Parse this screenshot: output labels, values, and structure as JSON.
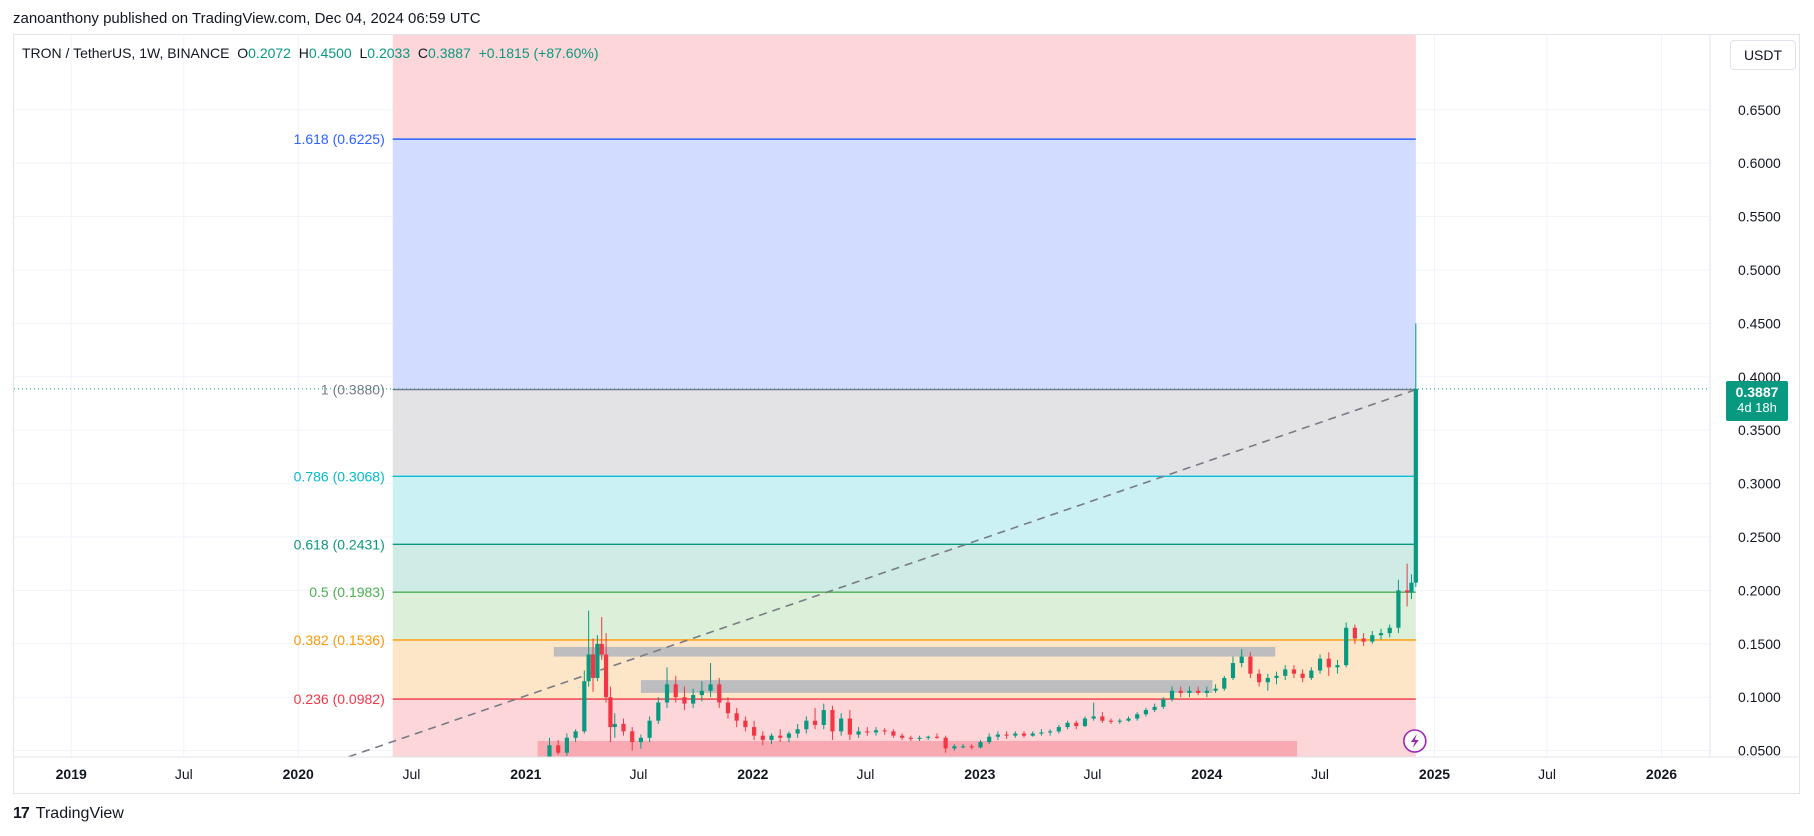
{
  "header": {
    "publisher_text": "zanoanthony published on TradingView.com, Dec 04, 2024 06:59 UTC"
  },
  "legend": {
    "symbol": "TRON / TetherUS, 1W, BINANCE",
    "open_label": "O",
    "open": "0.2072",
    "high_label": "H",
    "high": "0.4500",
    "low_label": "L",
    "low": "0.2033",
    "close_label": "C",
    "close": "0.3887",
    "change": "+0.1815 (+87.60%)"
  },
  "currency_button": {
    "label": "USDT"
  },
  "last_price": {
    "value": "0.3887",
    "countdown": "4d 18h"
  },
  "footer": {
    "brand": "TradingView",
    "logo_glyph": "17"
  },
  "colors": {
    "up": "#089981",
    "down": "#f23645",
    "grid": "#f0f3fa",
    "axis_text": "#131722"
  },
  "chart_data": {
    "type": "candlestick",
    "x_ticks": [
      {
        "label": "2019",
        "date": "2019-01-01",
        "bold": true
      },
      {
        "label": "Jul",
        "date": "2019-07-01",
        "bold": false
      },
      {
        "label": "2020",
        "date": "2020-01-01",
        "bold": true
      },
      {
        "label": "Jul",
        "date": "2020-07-01",
        "bold": false
      },
      {
        "label": "2021",
        "date": "2021-01-01",
        "bold": true
      },
      {
        "label": "Jul",
        "date": "2021-07-01",
        "bold": false
      },
      {
        "label": "2022",
        "date": "2022-01-01",
        "bold": true
      },
      {
        "label": "Jul",
        "date": "2022-07-01",
        "bold": false
      },
      {
        "label": "2023",
        "date": "2023-01-01",
        "bold": true
      },
      {
        "label": "Jul",
        "date": "2023-07-01",
        "bold": false
      },
      {
        "label": "2024",
        "date": "2024-01-01",
        "bold": true
      },
      {
        "label": "Jul",
        "date": "2024-07-01",
        "bold": false
      },
      {
        "label": "2025",
        "date": "2025-01-01",
        "bold": true
      },
      {
        "label": "Jul",
        "date": "2025-07-01",
        "bold": false
      },
      {
        "label": "2026",
        "date": "2026-01-01",
        "bold": true
      }
    ],
    "xlim": [
      "2018-10-01",
      "2026-03-20"
    ],
    "y_ticks": [
      "0.0500",
      "0.1000",
      "0.1500",
      "0.2000",
      "0.2500",
      "0.3000",
      "0.3500",
      "0.4000",
      "0.4500",
      "0.5000",
      "0.5500",
      "0.6000",
      "0.6500"
    ],
    "ylim": [
      0.044,
      0.72
    ],
    "fib_retracement": {
      "start_date": "2020-06-01",
      "end_date": "2024-12-02",
      "levels": [
        {
          "label": "1.618 (0.6225)",
          "ratio": 1.618,
          "price": 0.6225,
          "color": "#2962ff",
          "fill": "#d1dcff"
        },
        {
          "label": "1 (0.3880)",
          "ratio": 1,
          "price": 0.388,
          "color": "#787b86",
          "fill": "#e3e3e6"
        },
        {
          "label": "0.786 (0.3068)",
          "ratio": 0.786,
          "price": 0.3068,
          "color": "#00bcd4",
          "fill": "#cbf1f5"
        },
        {
          "label": "0.618 (0.2431)",
          "ratio": 0.618,
          "price": 0.2431,
          "color": "#089981",
          "fill": "#cfebe5"
        },
        {
          "label": "0.5 (0.1983)",
          "ratio": 0.5,
          "price": 0.1983,
          "color": "#4caf50",
          "fill": "#dcefd9"
        },
        {
          "label": "0.382 (0.1536)",
          "ratio": 0.382,
          "price": 0.1536,
          "color": "#ff9800",
          "fill": "#fde6c7"
        },
        {
          "label": "0.236 (0.0982)",
          "ratio": 0.236,
          "price": 0.0982,
          "color": "#f23645",
          "fill": "#fcd6d9"
        }
      ],
      "top_fill": "#fcd6d9",
      "bottom_fill": "#fcd6d9"
    },
    "zones": [
      {
        "start": "2021-02-15",
        "end": "2024-04-20",
        "low": 0.138,
        "high": 0.147,
        "color": "#b2b5be"
      },
      {
        "start": "2021-07-05",
        "end": "2024-01-10",
        "low": 0.104,
        "high": 0.116,
        "color": "#b2b5be"
      },
      {
        "start": "2021-01-20",
        "end": "2024-05-25",
        "low": 0.044,
        "high": 0.059,
        "color": "#f7a1a9"
      }
    ],
    "trendline": {
      "start_date": "2020-03-01",
      "start_price": 0.04,
      "end_date": "2024-12-02",
      "end_price": 0.388
    },
    "candles": [
      {
        "date": "2021-01-25",
        "o": 0.03,
        "h": 0.042,
        "l": 0.028,
        "c": 0.038
      },
      {
        "date": "2021-02-08",
        "o": 0.038,
        "h": 0.062,
        "l": 0.036,
        "c": 0.055
      },
      {
        "date": "2021-02-22",
        "o": 0.055,
        "h": 0.06,
        "l": 0.046,
        "c": 0.048
      },
      {
        "date": "2021-03-08",
        "o": 0.048,
        "h": 0.066,
        "l": 0.045,
        "c": 0.062
      },
      {
        "date": "2021-03-22",
        "o": 0.062,
        "h": 0.07,
        "l": 0.058,
        "c": 0.068
      },
      {
        "date": "2021-04-05",
        "o": 0.068,
        "h": 0.125,
        "l": 0.066,
        "c": 0.115
      },
      {
        "date": "2021-04-12",
        "o": 0.115,
        "h": 0.181,
        "l": 0.11,
        "c": 0.14
      },
      {
        "date": "2021-04-19",
        "o": 0.14,
        "h": 0.155,
        "l": 0.105,
        "c": 0.118
      },
      {
        "date": "2021-04-26",
        "o": 0.118,
        "h": 0.158,
        "l": 0.115,
        "c": 0.15
      },
      {
        "date": "2021-05-03",
        "o": 0.15,
        "h": 0.175,
        "l": 0.135,
        "c": 0.14
      },
      {
        "date": "2021-05-10",
        "o": 0.14,
        "h": 0.16,
        "l": 0.095,
        "c": 0.1
      },
      {
        "date": "2021-05-17",
        "o": 0.1,
        "h": 0.11,
        "l": 0.058,
        "c": 0.072
      },
      {
        "date": "2021-05-24",
        "o": 0.072,
        "h": 0.085,
        "l": 0.062,
        "c": 0.075
      },
      {
        "date": "2021-06-07",
        "o": 0.075,
        "h": 0.08,
        "l": 0.064,
        "c": 0.068
      },
      {
        "date": "2021-06-21",
        "o": 0.068,
        "h": 0.072,
        "l": 0.05,
        "c": 0.058
      },
      {
        "date": "2021-07-05",
        "o": 0.058,
        "h": 0.065,
        "l": 0.052,
        "c": 0.062
      },
      {
        "date": "2021-07-19",
        "o": 0.062,
        "h": 0.082,
        "l": 0.058,
        "c": 0.078
      },
      {
        "date": "2021-08-02",
        "o": 0.078,
        "h": 0.1,
        "l": 0.075,
        "c": 0.095
      },
      {
        "date": "2021-08-16",
        "o": 0.095,
        "h": 0.128,
        "l": 0.09,
        "c": 0.112
      },
      {
        "date": "2021-08-30",
        "o": 0.112,
        "h": 0.12,
        "l": 0.095,
        "c": 0.1
      },
      {
        "date": "2021-09-13",
        "o": 0.1,
        "h": 0.11,
        "l": 0.088,
        "c": 0.094
      },
      {
        "date": "2021-09-27",
        "o": 0.094,
        "h": 0.108,
        "l": 0.09,
        "c": 0.102
      },
      {
        "date": "2021-10-11",
        "o": 0.102,
        "h": 0.115,
        "l": 0.096,
        "c": 0.106
      },
      {
        "date": "2021-10-25",
        "o": 0.106,
        "h": 0.132,
        "l": 0.1,
        "c": 0.112
      },
      {
        "date": "2021-11-08",
        "o": 0.112,
        "h": 0.118,
        "l": 0.09,
        "c": 0.095
      },
      {
        "date": "2021-11-22",
        "o": 0.095,
        "h": 0.1,
        "l": 0.08,
        "c": 0.085
      },
      {
        "date": "2021-12-06",
        "o": 0.085,
        "h": 0.09,
        "l": 0.072,
        "c": 0.078
      },
      {
        "date": "2021-12-20",
        "o": 0.078,
        "h": 0.082,
        "l": 0.068,
        "c": 0.072
      },
      {
        "date": "2022-01-03",
        "o": 0.072,
        "h": 0.078,
        "l": 0.06,
        "c": 0.064
      },
      {
        "date": "2022-01-17",
        "o": 0.064,
        "h": 0.068,
        "l": 0.055,
        "c": 0.06
      },
      {
        "date": "2022-01-31",
        "o": 0.06,
        "h": 0.066,
        "l": 0.056,
        "c": 0.064
      },
      {
        "date": "2022-02-14",
        "o": 0.064,
        "h": 0.07,
        "l": 0.058,
        "c": 0.062
      },
      {
        "date": "2022-02-28",
        "o": 0.062,
        "h": 0.068,
        "l": 0.058,
        "c": 0.066
      },
      {
        "date": "2022-03-14",
        "o": 0.066,
        "h": 0.075,
        "l": 0.062,
        "c": 0.07
      },
      {
        "date": "2022-03-28",
        "o": 0.07,
        "h": 0.082,
        "l": 0.066,
        "c": 0.078
      },
      {
        "date": "2022-04-11",
        "o": 0.078,
        "h": 0.09,
        "l": 0.07,
        "c": 0.074
      },
      {
        "date": "2022-04-25",
        "o": 0.074,
        "h": 0.094,
        "l": 0.07,
        "c": 0.088
      },
      {
        "date": "2022-05-09",
        "o": 0.088,
        "h": 0.092,
        "l": 0.06,
        "c": 0.068
      },
      {
        "date": "2022-05-23",
        "o": 0.068,
        "h": 0.085,
        "l": 0.064,
        "c": 0.08
      },
      {
        "date": "2022-06-06",
        "o": 0.08,
        "h": 0.088,
        "l": 0.06,
        "c": 0.065
      },
      {
        "date": "2022-06-20",
        "o": 0.065,
        "h": 0.072,
        "l": 0.062,
        "c": 0.068
      },
      {
        "date": "2022-07-04",
        "o": 0.068,
        "h": 0.072,
        "l": 0.064,
        "c": 0.067
      },
      {
        "date": "2022-07-18",
        "o": 0.067,
        "h": 0.072,
        "l": 0.064,
        "c": 0.069
      },
      {
        "date": "2022-08-01",
        "o": 0.069,
        "h": 0.071,
        "l": 0.065,
        "c": 0.068
      },
      {
        "date": "2022-08-15",
        "o": 0.068,
        "h": 0.07,
        "l": 0.062,
        "c": 0.064
      },
      {
        "date": "2022-08-29",
        "o": 0.064,
        "h": 0.066,
        "l": 0.06,
        "c": 0.062
      },
      {
        "date": "2022-09-12",
        "o": 0.062,
        "h": 0.064,
        "l": 0.059,
        "c": 0.061
      },
      {
        "date": "2022-09-26",
        "o": 0.061,
        "h": 0.064,
        "l": 0.059,
        "c": 0.062
      },
      {
        "date": "2022-10-10",
        "o": 0.062,
        "h": 0.064,
        "l": 0.06,
        "c": 0.063
      },
      {
        "date": "2022-10-24",
        "o": 0.063,
        "h": 0.066,
        "l": 0.061,
        "c": 0.062
      },
      {
        "date": "2022-11-07",
        "o": 0.062,
        "h": 0.064,
        "l": 0.048,
        "c": 0.052
      },
      {
        "date": "2022-11-21",
        "o": 0.052,
        "h": 0.056,
        "l": 0.05,
        "c": 0.054
      },
      {
        "date": "2022-12-05",
        "o": 0.054,
        "h": 0.056,
        "l": 0.052,
        "c": 0.054
      },
      {
        "date": "2022-12-19",
        "o": 0.054,
        "h": 0.056,
        "l": 0.051,
        "c": 0.053
      },
      {
        "date": "2023-01-02",
        "o": 0.053,
        "h": 0.06,
        "l": 0.052,
        "c": 0.058
      },
      {
        "date": "2023-01-16",
        "o": 0.058,
        "h": 0.066,
        "l": 0.056,
        "c": 0.063
      },
      {
        "date": "2023-01-30",
        "o": 0.063,
        "h": 0.068,
        "l": 0.06,
        "c": 0.065
      },
      {
        "date": "2023-02-13",
        "o": 0.065,
        "h": 0.068,
        "l": 0.061,
        "c": 0.064
      },
      {
        "date": "2023-02-27",
        "o": 0.064,
        "h": 0.068,
        "l": 0.062,
        "c": 0.066
      },
      {
        "date": "2023-03-13",
        "o": 0.066,
        "h": 0.068,
        "l": 0.062,
        "c": 0.064
      },
      {
        "date": "2023-03-27",
        "o": 0.064,
        "h": 0.068,
        "l": 0.063,
        "c": 0.066
      },
      {
        "date": "2023-04-10",
        "o": 0.066,
        "h": 0.07,
        "l": 0.064,
        "c": 0.067
      },
      {
        "date": "2023-04-24",
        "o": 0.067,
        "h": 0.07,
        "l": 0.064,
        "c": 0.068
      },
      {
        "date": "2023-05-08",
        "o": 0.068,
        "h": 0.074,
        "l": 0.066,
        "c": 0.072
      },
      {
        "date": "2023-05-22",
        "o": 0.072,
        "h": 0.078,
        "l": 0.07,
        "c": 0.076
      },
      {
        "date": "2023-06-05",
        "o": 0.076,
        "h": 0.078,
        "l": 0.07,
        "c": 0.073
      },
      {
        "date": "2023-06-19",
        "o": 0.073,
        "h": 0.082,
        "l": 0.072,
        "c": 0.08
      },
      {
        "date": "2023-07-03",
        "o": 0.08,
        "h": 0.095,
        "l": 0.078,
        "c": 0.082
      },
      {
        "date": "2023-07-17",
        "o": 0.082,
        "h": 0.086,
        "l": 0.076,
        "c": 0.078
      },
      {
        "date": "2023-07-31",
        "o": 0.078,
        "h": 0.08,
        "l": 0.075,
        "c": 0.077
      },
      {
        "date": "2023-08-14",
        "o": 0.077,
        "h": 0.08,
        "l": 0.075,
        "c": 0.078
      },
      {
        "date": "2023-08-28",
        "o": 0.078,
        "h": 0.082,
        "l": 0.077,
        "c": 0.08
      },
      {
        "date": "2023-09-11",
        "o": 0.08,
        "h": 0.086,
        "l": 0.078,
        "c": 0.084
      },
      {
        "date": "2023-09-25",
        "o": 0.084,
        "h": 0.09,
        "l": 0.082,
        "c": 0.088
      },
      {
        "date": "2023-10-09",
        "o": 0.088,
        "h": 0.094,
        "l": 0.086,
        "c": 0.091
      },
      {
        "date": "2023-10-23",
        "o": 0.091,
        "h": 0.1,
        "l": 0.089,
        "c": 0.098
      },
      {
        "date": "2023-11-06",
        "o": 0.098,
        "h": 0.11,
        "l": 0.096,
        "c": 0.106
      },
      {
        "date": "2023-11-20",
        "o": 0.106,
        "h": 0.11,
        "l": 0.1,
        "c": 0.104
      },
      {
        "date": "2023-12-04",
        "o": 0.104,
        "h": 0.11,
        "l": 0.1,
        "c": 0.106
      },
      {
        "date": "2023-12-18",
        "o": 0.106,
        "h": 0.11,
        "l": 0.102,
        "c": 0.104
      },
      {
        "date": "2024-01-01",
        "o": 0.104,
        "h": 0.11,
        "l": 0.1,
        "c": 0.106
      },
      {
        "date": "2024-01-15",
        "o": 0.106,
        "h": 0.112,
        "l": 0.104,
        "c": 0.108
      },
      {
        "date": "2024-01-29",
        "o": 0.108,
        "h": 0.12,
        "l": 0.106,
        "c": 0.118
      },
      {
        "date": "2024-02-12",
        "o": 0.118,
        "h": 0.138,
        "l": 0.116,
        "c": 0.132
      },
      {
        "date": "2024-02-26",
        "o": 0.132,
        "h": 0.145,
        "l": 0.128,
        "c": 0.138
      },
      {
        "date": "2024-03-11",
        "o": 0.138,
        "h": 0.142,
        "l": 0.118,
        "c": 0.122
      },
      {
        "date": "2024-03-25",
        "o": 0.122,
        "h": 0.126,
        "l": 0.11,
        "c": 0.114
      },
      {
        "date": "2024-04-08",
        "o": 0.114,
        "h": 0.122,
        "l": 0.106,
        "c": 0.118
      },
      {
        "date": "2024-04-22",
        "o": 0.118,
        "h": 0.124,
        "l": 0.112,
        "c": 0.12
      },
      {
        "date": "2024-05-06",
        "o": 0.12,
        "h": 0.13,
        "l": 0.116,
        "c": 0.126
      },
      {
        "date": "2024-05-20",
        "o": 0.126,
        "h": 0.13,
        "l": 0.118,
        "c": 0.122
      },
      {
        "date": "2024-06-03",
        "o": 0.122,
        "h": 0.126,
        "l": 0.114,
        "c": 0.118
      },
      {
        "date": "2024-06-17",
        "o": 0.118,
        "h": 0.128,
        "l": 0.116,
        "c": 0.125
      },
      {
        "date": "2024-07-01",
        "o": 0.125,
        "h": 0.14,
        "l": 0.122,
        "c": 0.136
      },
      {
        "date": "2024-07-15",
        "o": 0.136,
        "h": 0.142,
        "l": 0.12,
        "c": 0.128
      },
      {
        "date": "2024-07-29",
        "o": 0.128,
        "h": 0.135,
        "l": 0.122,
        "c": 0.13
      },
      {
        "date": "2024-08-12",
        "o": 0.13,
        "h": 0.17,
        "l": 0.128,
        "c": 0.165
      },
      {
        "date": "2024-08-26",
        "o": 0.165,
        "h": 0.168,
        "l": 0.15,
        "c": 0.155
      },
      {
        "date": "2024-09-09",
        "o": 0.155,
        "h": 0.16,
        "l": 0.148,
        "c": 0.152
      },
      {
        "date": "2024-09-23",
        "o": 0.152,
        "h": 0.162,
        "l": 0.15,
        "c": 0.158
      },
      {
        "date": "2024-10-07",
        "o": 0.158,
        "h": 0.164,
        "l": 0.154,
        "c": 0.16
      },
      {
        "date": "2024-10-21",
        "o": 0.16,
        "h": 0.168,
        "l": 0.156,
        "c": 0.165
      },
      {
        "date": "2024-11-04",
        "o": 0.165,
        "h": 0.21,
        "l": 0.16,
        "c": 0.2
      },
      {
        "date": "2024-11-18",
        "o": 0.2,
        "h": 0.225,
        "l": 0.185,
        "c": 0.198
      },
      {
        "date": "2024-11-25",
        "o": 0.198,
        "h": 0.215,
        "l": 0.192,
        "c": 0.2072
      },
      {
        "date": "2024-12-02",
        "o": 0.2072,
        "h": 0.45,
        "l": 0.2033,
        "c": 0.3887
      }
    ]
  }
}
